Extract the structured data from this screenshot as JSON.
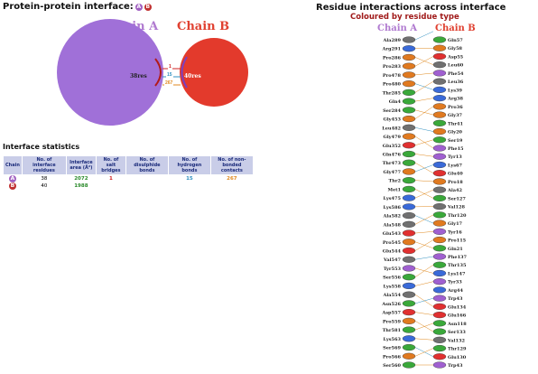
{
  "left": {
    "title": "Protein-protein interface:",
    "chip_a": "A",
    "chip_b": "B",
    "chain_a_label": "Chain A",
    "chain_b_label": "Chain B",
    "chain_a_color": "#a070d8",
    "chain_b_color": "#e33a2c",
    "res_a": "38res",
    "res_b": "40res",
    "saltbridges": "1",
    "hbonds": "15",
    "nonbonded": "267",
    "stats_title": "Interface statistics",
    "headers": [
      "Chain",
      "No. of interface residues",
      "Interface area (Å²)",
      "No. of salt bridges",
      "No. of disulphide bonds",
      "No. of hydrogen bonds",
      "No. of non-bonded contacts"
    ],
    "rows": [
      {
        "chain": "A",
        "residues": "38",
        "area": "2072",
        "salt": "1",
        "disulphide": "",
        "hbonds": "15",
        "nonbonded": "267"
      },
      {
        "chain": "B",
        "residues": "40",
        "area": "1988",
        "salt": "",
        "disulphide": "",
        "hbonds": "",
        "nonbonded": ""
      }
    ]
  },
  "right": {
    "title": "Residue interactions across interface",
    "subtitle": "Coloured by residue type",
    "chain_a_label": "Chain A",
    "chain_b_label": "Chain B",
    "chain_a_residues": [
      {
        "label": "Ala289",
        "color": "#707070"
      },
      {
        "label": "Arg291",
        "color": "#3a6ad8"
      },
      {
        "label": "Pro286",
        "color": "#e07a20"
      },
      {
        "label": "Pro283",
        "color": "#e07a20"
      },
      {
        "label": "Pro478",
        "color": "#e07a20"
      },
      {
        "label": "Pro480",
        "color": "#e07a20"
      },
      {
        "label": "Thr285",
        "color": "#3aa83a"
      },
      {
        "label": "Gln4",
        "color": "#3aa83a"
      },
      {
        "label": "Ser284",
        "color": "#3aa83a"
      },
      {
        "label": "Gly453",
        "color": "#e07a20"
      },
      {
        "label": "Leu482",
        "color": "#707070"
      },
      {
        "label": "Gly479",
        "color": "#e07a20"
      },
      {
        "label": "Glu352",
        "color": "#e03030"
      },
      {
        "label": "Gln476",
        "color": "#3aa83a"
      },
      {
        "label": "Thr473",
        "color": "#3aa83a"
      },
      {
        "label": "Gly477",
        "color": "#e07a20"
      },
      {
        "label": "Thr2",
        "color": "#3aa83a"
      },
      {
        "label": "Met1",
        "color": "#3aa83a"
      },
      {
        "label": "Lys475",
        "color": "#3a6ad8"
      },
      {
        "label": "Lys586",
        "color": "#3a6ad8"
      },
      {
        "label": "Ala582",
        "color": "#707070"
      },
      {
        "label": "Ala548",
        "color": "#707070"
      },
      {
        "label": "Glu543",
        "color": "#e03030"
      },
      {
        "label": "Pro545",
        "color": "#e07a20"
      },
      {
        "label": "Glu544",
        "color": "#e03030"
      },
      {
        "label": "Val547",
        "color": "#707070"
      },
      {
        "label": "Tyr553",
        "color": "#a060d0"
      },
      {
        "label": "Ser556",
        "color": "#3aa83a"
      },
      {
        "label": "Lys558",
        "color": "#3a6ad8"
      },
      {
        "label": "Ala554",
        "color": "#707070"
      },
      {
        "label": "Asn526",
        "color": "#3aa83a"
      },
      {
        "label": "Asp557",
        "color": "#e03030"
      },
      {
        "label": "Pro559",
        "color": "#e07a20"
      },
      {
        "label": "Thr581",
        "color": "#3aa83a"
      },
      {
        "label": "Lys563",
        "color": "#3a6ad8"
      },
      {
        "label": "Ser569",
        "color": "#3aa83a"
      },
      {
        "label": "Pro566",
        "color": "#e07a20"
      },
      {
        "label": "Ser560",
        "color": "#3aa83a"
      }
    ],
    "chain_b_residues": [
      {
        "label": "Gln57",
        "color": "#3aa83a"
      },
      {
        "label": "Gly58",
        "color": "#e07a20"
      },
      {
        "label": "Asp55",
        "color": "#e03030"
      },
      {
        "label": "Leu60",
        "color": "#707070"
      },
      {
        "label": "Phe54",
        "color": "#a060d0"
      },
      {
        "label": "Leu36",
        "color": "#707070"
      },
      {
        "label": "Lys39",
        "color": "#3a6ad8"
      },
      {
        "label": "Arg38",
        "color": "#3a6ad8"
      },
      {
        "label": "Pro36",
        "color": "#e07a20"
      },
      {
        "label": "Gly37",
        "color": "#e07a20"
      },
      {
        "label": "Thr41",
        "color": "#3aa83a"
      },
      {
        "label": "Gly20",
        "color": "#e07a20"
      },
      {
        "label": "Ser19",
        "color": "#3aa83a"
      },
      {
        "label": "Phe15",
        "color": "#a060d0"
      },
      {
        "label": "Tyr13",
        "color": "#a060d0"
      },
      {
        "label": "Lys67",
        "color": "#3a6ad8"
      },
      {
        "label": "Glu40",
        "color": "#e03030"
      },
      {
        "label": "Pro18",
        "color": "#e07a20"
      },
      {
        "label": "Ala42",
        "color": "#707070"
      },
      {
        "label": "Ser127",
        "color": "#3aa83a"
      },
      {
        "label": "Val128",
        "color": "#707070"
      },
      {
        "label": "Thr120",
        "color": "#3aa83a"
      },
      {
        "label": "Gly17",
        "color": "#e07a20"
      },
      {
        "label": "Tyr16",
        "color": "#a060d0"
      },
      {
        "label": "Pro115",
        "color": "#e07a20"
      },
      {
        "label": "Gln21",
        "color": "#3aa83a"
      },
      {
        "label": "Phe137",
        "color": "#a060d0"
      },
      {
        "label": "Thr135",
        "color": "#3aa83a"
      },
      {
        "label": "Lys147",
        "color": "#3a6ad8"
      },
      {
        "label": "Tyr33",
        "color": "#a060d0"
      },
      {
        "label": "Arg44",
        "color": "#3a6ad8"
      },
      {
        "label": "Trp43",
        "color": "#a060d0"
      },
      {
        "label": "Glu134",
        "color": "#e03030"
      },
      {
        "label": "Glu166",
        "color": "#e03030"
      },
      {
        "label": "Asn118",
        "color": "#3aa83a"
      },
      {
        "label": "Ser133",
        "color": "#3aa83a"
      },
      {
        "label": "Val132",
        "color": "#707070"
      },
      {
        "label": "Thr129",
        "color": "#3aa83a"
      },
      {
        "label": "Glu130",
        "color": "#e03030"
      },
      {
        "label": "Trp43",
        "color": "#a060d0"
      }
    ]
  }
}
